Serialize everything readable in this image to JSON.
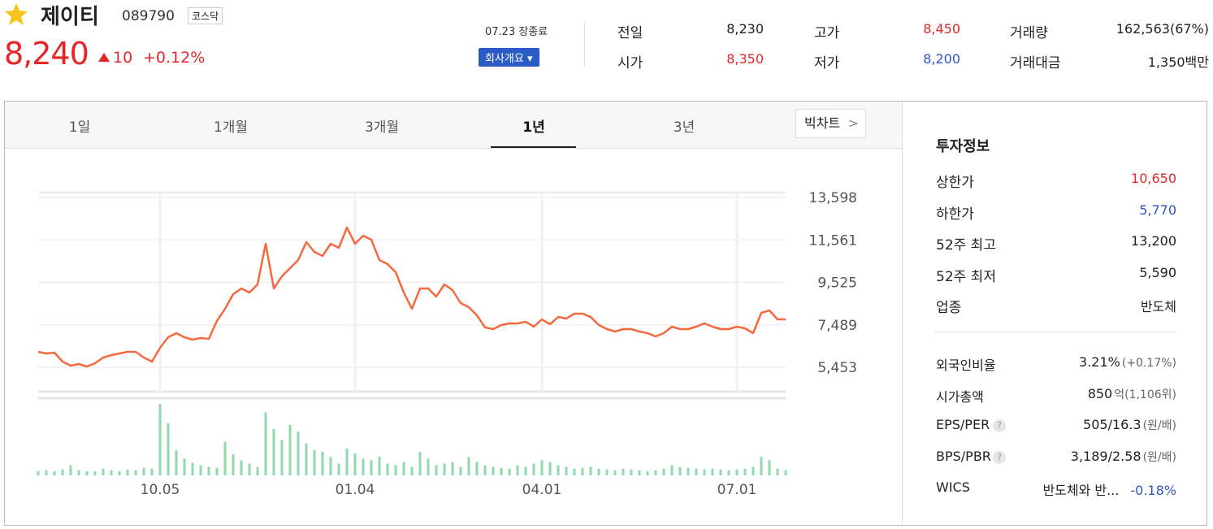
{
  "header": {
    "name": "제이티",
    "code": "089790",
    "market": "코스닥",
    "price": "8,240",
    "change": "10",
    "change_rate": "+0.12%",
    "status": "07.23 장종료",
    "button": "회사개요"
  },
  "stats": [
    {
      "label": "전일",
      "value": "8,230"
    },
    {
      "label": "고가",
      "value": "8,450"
    },
    {
      "label": "거래량",
      "value": "162,563(67%)"
    },
    {
      "label": "시가",
      "value": "8,350"
    },
    {
      "label": "저가",
      "value": "8,200"
    },
    {
      "label": "거래대금",
      "value": "1,350백만"
    }
  ],
  "tabs": [
    "1일",
    "1개월",
    "3개월",
    "1년",
    "3년"
  ],
  "big_chart": "빅차트",
  "info": {
    "title": "투자정보",
    "rows": [
      {
        "label": "상한가",
        "value": "10,650"
      },
      {
        "label": "하한가",
        "value": "5,770"
      },
      {
        "label": "52주 최고",
        "value": "13,200"
      },
      {
        "label": "52주 최저",
        "value": "5,590"
      },
      {
        "label": "업종",
        "value": "반도체"
      }
    ],
    "rows2": [
      {
        "label": "외국인비율",
        "value": "3.21%",
        "note": "(+0.17%)"
      },
      {
        "label": "시가총액",
        "value": "850",
        "note": "억(1,106위)"
      },
      {
        "label": "EPS/PER",
        "value": "505/16.3",
        "note": "(원/배)"
      },
      {
        "label": "BPS/PBR",
        "value": "3,189/2.58",
        "note": "(원/배)"
      },
      {
        "label": "WICS",
        "value": "반도체와 반...",
        "note": "-0.18%"
      }
    ]
  },
  "chart_data": {
    "type": "line",
    "categories": [
      null,
      null,
      null,
      null,
      null,
      null,
      null,
      null,
      null,
      null,
      null,
      null,
      null,
      null,
      null,
      "10.05",
      null,
      null,
      null,
      null,
      null,
      null,
      null,
      null,
      null,
      null,
      null,
      null,
      null,
      null,
      null,
      null,
      null,
      null,
      null,
      null,
      null,
      null,
      null,
      "01.04",
      null,
      null,
      null,
      null,
      null,
      null,
      null,
      null,
      null,
      null,
      null,
      null,
      null,
      null,
      null,
      null,
      null,
      null,
      null,
      null,
      null,
      null,
      "04.01",
      null,
      null,
      null,
      null,
      null,
      null,
      null,
      null,
      null,
      null,
      null,
      null,
      null,
      null,
      null,
      null,
      null,
      null,
      null,
      null,
      null,
      null,
      null,
      "07.01",
      null,
      null,
      null,
      null,
      null,
      null
    ],
    "series": [
      {
        "name": "price",
        "color": "#f4693f",
        "values": [
          6194,
          6116,
          6155,
          5726,
          5531,
          5609,
          5492,
          5648,
          5921,
          6038,
          6116,
          6194,
          6194,
          5921,
          5726,
          6389,
          6895,
          7090,
          6895,
          6778,
          6856,
          6817,
          7675,
          8259,
          8961,
          9233,
          9039,
          9428,
          11377,
          9233,
          9818,
          10208,
          10597,
          11455,
          10987,
          10792,
          11377,
          11182,
          12156,
          11377,
          11766,
          11572,
          10597,
          10402,
          10013,
          9039,
          8259,
          9233,
          9233,
          8844,
          9428,
          9155,
          8532,
          8337,
          7947,
          7363,
          7285,
          7480,
          7558,
          7558,
          7636,
          7402,
          7752,
          7519,
          7869,
          7791,
          8025,
          8025,
          7869,
          7480,
          7285,
          7168,
          7285,
          7285,
          7168,
          7090,
          6934,
          7090,
          7402,
          7285,
          7285,
          7402,
          7558,
          7402,
          7285,
          7285,
          7402,
          7324,
          7090,
          8064,
          8181,
          7752,
          7752
        ]
      },
      {
        "name": "volume",
        "color": "#8fdaa8",
        "values": [
          5,
          6,
          5,
          7,
          12,
          6,
          5,
          5,
          8,
          6,
          5,
          7,
          6,
          9,
          8,
          85,
          62,
          30,
          20,
          15,
          12,
          10,
          9,
          40,
          25,
          18,
          14,
          10,
          75,
          55,
          42,
          60,
          52,
          38,
          30,
          28,
          22,
          14,
          32,
          26,
          20,
          18,
          22,
          14,
          12,
          16,
          10,
          28,
          20,
          12,
          14,
          16,
          10,
          22,
          16,
          12,
          10,
          9,
          8,
          12,
          10,
          14,
          18,
          16,
          12,
          10,
          8,
          9,
          10,
          8,
          7,
          6,
          8,
          7,
          6,
          5,
          6,
          8,
          12,
          10,
          9,
          8,
          7,
          8,
          7,
          6,
          7,
          8,
          10,
          22,
          18,
          8,
          6
        ]
      }
    ],
    "ylim": [
      4284,
      13832
    ],
    "yticks": [
      {
        "value": 5453,
        "label": "5,453"
      },
      {
        "value": 7489,
        "label": "7,489"
      },
      {
        "value": 9525,
        "label": "9,525"
      },
      {
        "value": 11561,
        "label": "11,561"
      },
      {
        "value": 13598,
        "label": "13,598"
      }
    ],
    "grid": true
  }
}
